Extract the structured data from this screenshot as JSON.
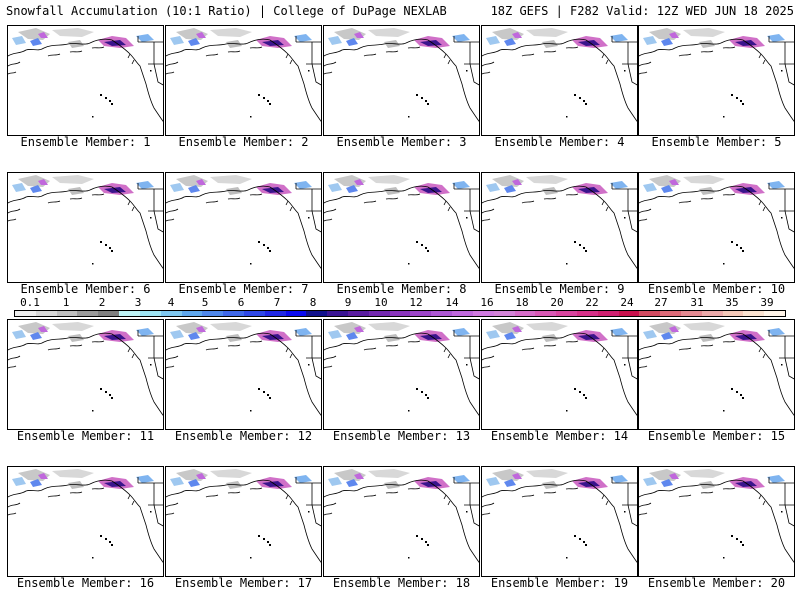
{
  "header": {
    "left": "Snowfall Accumulation (10:1 Ratio) | College of DuPage NEXLAB",
    "right": "18Z GEFS | F282 Valid: 12Z WED JUN 18 2025"
  },
  "panels": [
    {
      "label": "Ensemble Member: 1"
    },
    {
      "label": "Ensemble Member: 2"
    },
    {
      "label": "Ensemble Member: 3"
    },
    {
      "label": "Ensemble Member: 4"
    },
    {
      "label": "Ensemble Member: 5"
    },
    {
      "label": "Ensemble Member: 6"
    },
    {
      "label": "Ensemble Member: 7"
    },
    {
      "label": "Ensemble Member: 8"
    },
    {
      "label": "Ensemble Member: 9"
    },
    {
      "label": "Ensemble Member: 10"
    },
    {
      "label": "Ensemble Member: 11"
    },
    {
      "label": "Ensemble Member: 12"
    },
    {
      "label": "Ensemble Member: 13"
    },
    {
      "label": "Ensemble Member: 14"
    },
    {
      "label": "Ensemble Member: 15"
    },
    {
      "label": "Ensemble Member: 16"
    },
    {
      "label": "Ensemble Member: 17"
    },
    {
      "label": "Ensemble Member: 18"
    },
    {
      "label": "Ensemble Member: 19"
    },
    {
      "label": "Ensemble Member: 20"
    }
  ],
  "colorbar": {
    "labels": [
      "0.1",
      "1",
      "2",
      "3",
      "4",
      "5",
      "6",
      "7",
      "8",
      "9",
      "10",
      "12",
      "14",
      "16",
      "18",
      "20",
      "22",
      "24",
      "27",
      "31",
      "35",
      "39"
    ],
    "colors": [
      "#eeeeee",
      "#d8d8d8",
      "#bebebe",
      "#9a9a9a",
      "#808080",
      "#bff5f7",
      "#9fe6f5",
      "#7fc8f0",
      "#5fa8ee",
      "#4f88ec",
      "#3f68ea",
      "#2f48e8",
      "#2028e6",
      "#0a0af0",
      "#10108c",
      "#3a1494",
      "#5a1ca0",
      "#7428b0",
      "#8a34bc",
      "#9c44c8",
      "#ae58d4",
      "#c068dc",
      "#d07ae0",
      "#d484d8",
      "#d66cc8",
      "#d858b4",
      "#d8449e",
      "#d63088",
      "#d02070",
      "#c8104c",
      "#d24a60",
      "#dc6a78",
      "#e48a92",
      "#ecaaaa",
      "#f4c8b8",
      "#fae2d0",
      "#fff4e8"
    ]
  }
}
